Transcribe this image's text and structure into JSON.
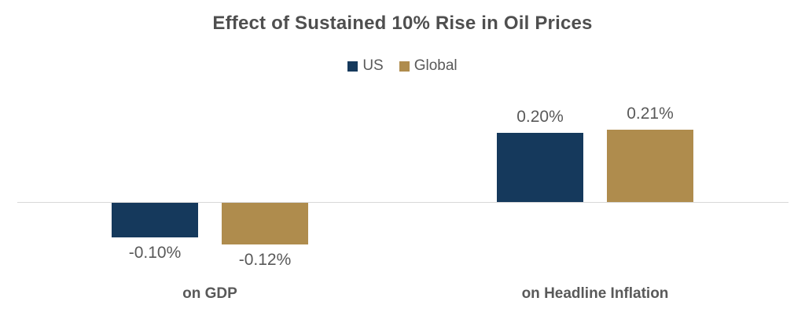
{
  "chart_data": {
    "type": "bar",
    "title": "Effect of Sustained 10% Rise in Oil Prices",
    "categories": [
      "on GDP",
      "on Headline Inflation"
    ],
    "series": [
      {
        "name": "US",
        "color": "#15395C",
        "values": [
          -0.1,
          0.2
        ],
        "labels": [
          "-0.10%",
          "0.20%"
        ]
      },
      {
        "name": "Global",
        "color": "#AF8C4D",
        "values": [
          -0.12,
          0.21
        ],
        "labels": [
          "-0.12%",
          "0.21%"
        ]
      }
    ],
    "unit": "%",
    "ylim": [
      -0.15,
      0.25
    ],
    "legend_position": "top-center",
    "grid": "zero-line-only",
    "text_color": "#595959",
    "title_color": "#4F4F4F",
    "axis_line_color": "#D8D8D8"
  }
}
